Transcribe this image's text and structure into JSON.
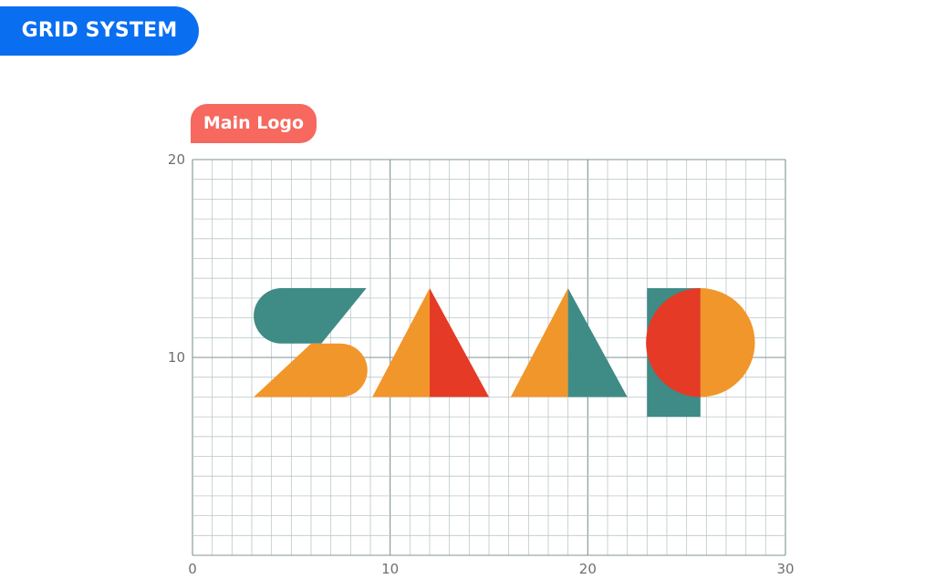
{
  "header": {
    "section_title": "GRID SYSTEM",
    "sub_title": "Main Logo"
  },
  "grid": {
    "x_range": [
      0,
      30
    ],
    "y_range": [
      0,
      20
    ],
    "x_ticks": [
      {
        "value": 0,
        "label": "0"
      },
      {
        "value": 10,
        "label": "10"
      },
      {
        "value": 20,
        "label": "20"
      },
      {
        "value": 30,
        "label": "30"
      }
    ],
    "y_ticks": [
      {
        "value": 10,
        "label": "10"
      },
      {
        "value": 20,
        "label": "20"
      }
    ],
    "minor_step": 1,
    "major_step": 10,
    "minor_line_color": "#bcc7c7",
    "major_line_color": "#7f9494"
  },
  "colors": {
    "teal": "#3f8b86",
    "orange": "#f1962a",
    "red": "#e53a26"
  },
  "logo": {
    "letter_s_top": {
      "color": "teal",
      "tip_x": 8.8,
      "y_top": 13.5,
      "y_bottom": 10.7,
      "cap_center_x": 4.5
    },
    "letter_s_bottom": {
      "color": "orange",
      "tip_x": 3.1,
      "y_top": 10.7,
      "y_bottom": 8.0,
      "cap_center_x": 7.5
    },
    "triangle_1": {
      "left_color": "orange",
      "right_color": "red",
      "x_left": 9.1,
      "apex_x": 12.0,
      "x_right": 15.0,
      "y_top": 13.5,
      "y_bottom": 8.0
    },
    "triangle_2": {
      "left_color": "orange",
      "right_color": "teal",
      "x_left": 16.1,
      "apex_x": 19.0,
      "x_right": 22.0,
      "y_top": 13.5,
      "y_bottom": 8.0
    },
    "letter_p": {
      "stem_color": "teal",
      "left_half_color": "red",
      "right_half_color": "orange",
      "stem_x_left": 23.0,
      "stem_x_right": 25.7,
      "stem_y_top": 13.5,
      "stem_y_bottom": 7.0,
      "circle_center_x": 25.7,
      "circle_center_y": 10.75,
      "circle_radius": 2.75
    }
  }
}
